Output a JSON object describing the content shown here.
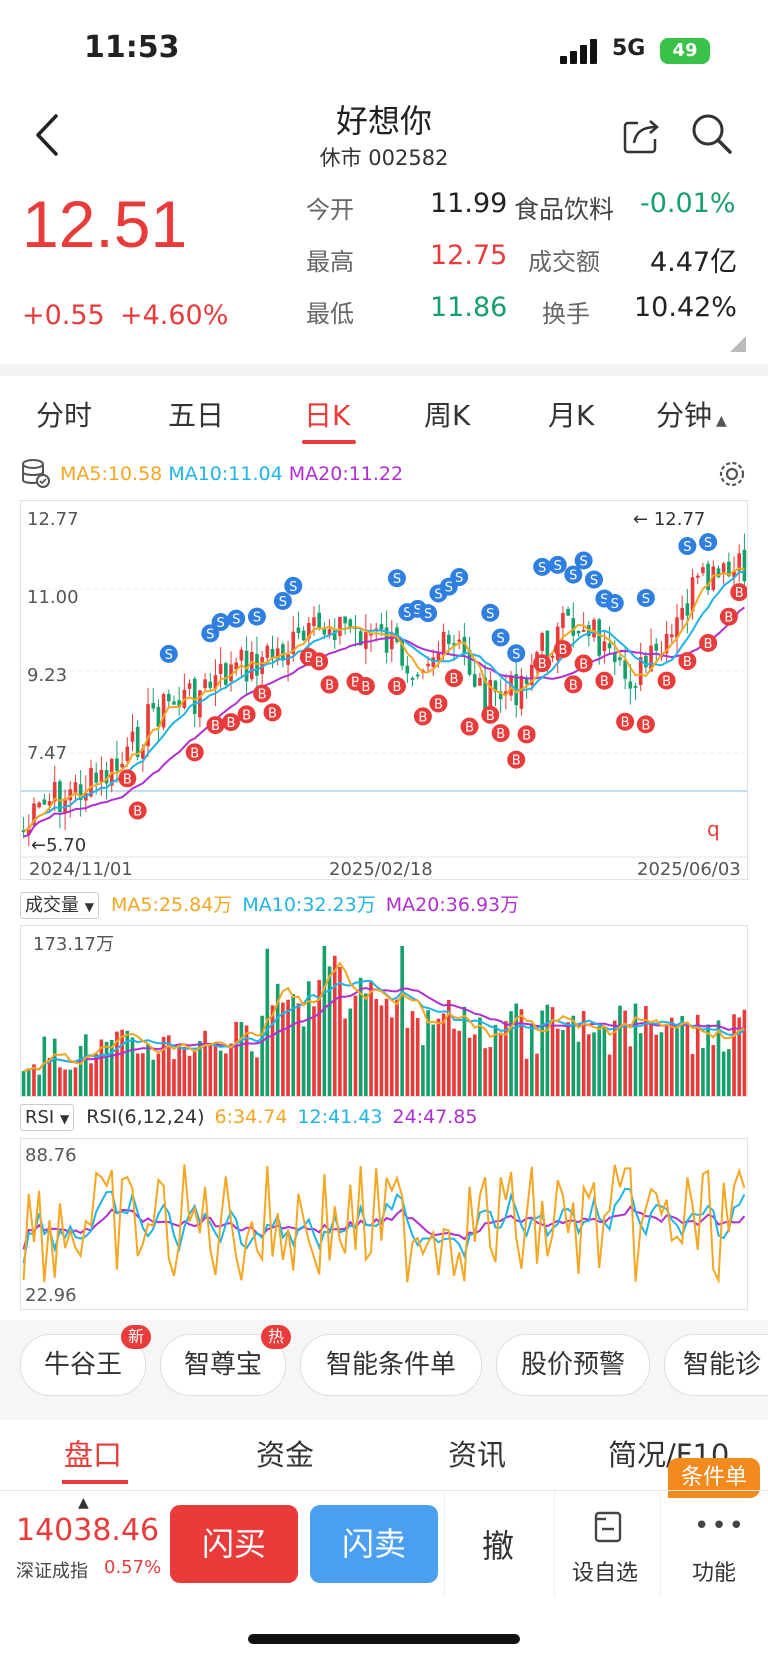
{
  "status": {
    "time": "11:53",
    "network": "5G",
    "battery": "49"
  },
  "header": {
    "title": "好想你",
    "subtitle": "休市 002582"
  },
  "quote": {
    "price": "12.51",
    "change": "+0.55",
    "change_pct": "+4.60%",
    "open_label": "今开",
    "open": "11.99",
    "industry": "食品饮料",
    "industry_chg": "-0.01%",
    "high_label": "最高",
    "high": "12.75",
    "amount_label": "成交额",
    "amount": "4.47亿",
    "low_label": "最低",
    "low": "11.86",
    "turnover_label": "换手",
    "turnover": "10.42%"
  },
  "tabs": [
    "分时",
    "五日",
    "日K",
    "周K",
    "月K",
    "分钟"
  ],
  "ma_legend": {
    "ma5": "MA5:10.58",
    "ma10": "MA10:11.04",
    "ma20": "MA20:11.22"
  },
  "kline": {
    "y_ticks": [
      "12.77",
      "11.00",
      "9.23",
      "7.47"
    ],
    "low_marker": "5.70",
    "high_marker": "12.77",
    "dates": [
      "2024/11/01",
      "2025/02/18",
      "2025/06/03"
    ],
    "q_mark": "q"
  },
  "volume": {
    "selector": "成交量",
    "ma5": "MA5:25.84万",
    "ma10": "MA10:32.23万",
    "ma20": "MA20:36.93万",
    "top": "173.17万"
  },
  "rsi": {
    "selector": "RSI",
    "label": "RSI(6,12,24)",
    "r6": "6:34.74",
    "r12": "12:41.43",
    "r24": "24:47.85",
    "top": "88.76",
    "bottom": "22.96"
  },
  "pills": [
    {
      "label": "牛谷王",
      "badge": "新"
    },
    {
      "label": "智尊宝",
      "badge": "热"
    },
    {
      "label": "智能条件单",
      "badge": ""
    },
    {
      "label": "股价预警",
      "badge": ""
    },
    {
      "label": "智能诊",
      "badge": ""
    }
  ],
  "bottom_tabs": [
    "盘口",
    "资金",
    "资讯",
    "简况/F10"
  ],
  "cond_badge": "条件单",
  "toolbar": {
    "index_value": "14038.46",
    "index_name": "深证成指",
    "index_pct": "0.57%",
    "buy": "闪买",
    "sell": "闪卖",
    "cancel": "撤",
    "watch": "设自选",
    "func": "功能"
  },
  "colors": {
    "up": "#e83b3a",
    "down": "#15a06b",
    "ma5": "#f5a623",
    "ma10": "#1fb4e6",
    "ma20": "#b02fd0",
    "buy_btn": "#e83b3a",
    "sell_btn": "#4a9ff0"
  }
}
